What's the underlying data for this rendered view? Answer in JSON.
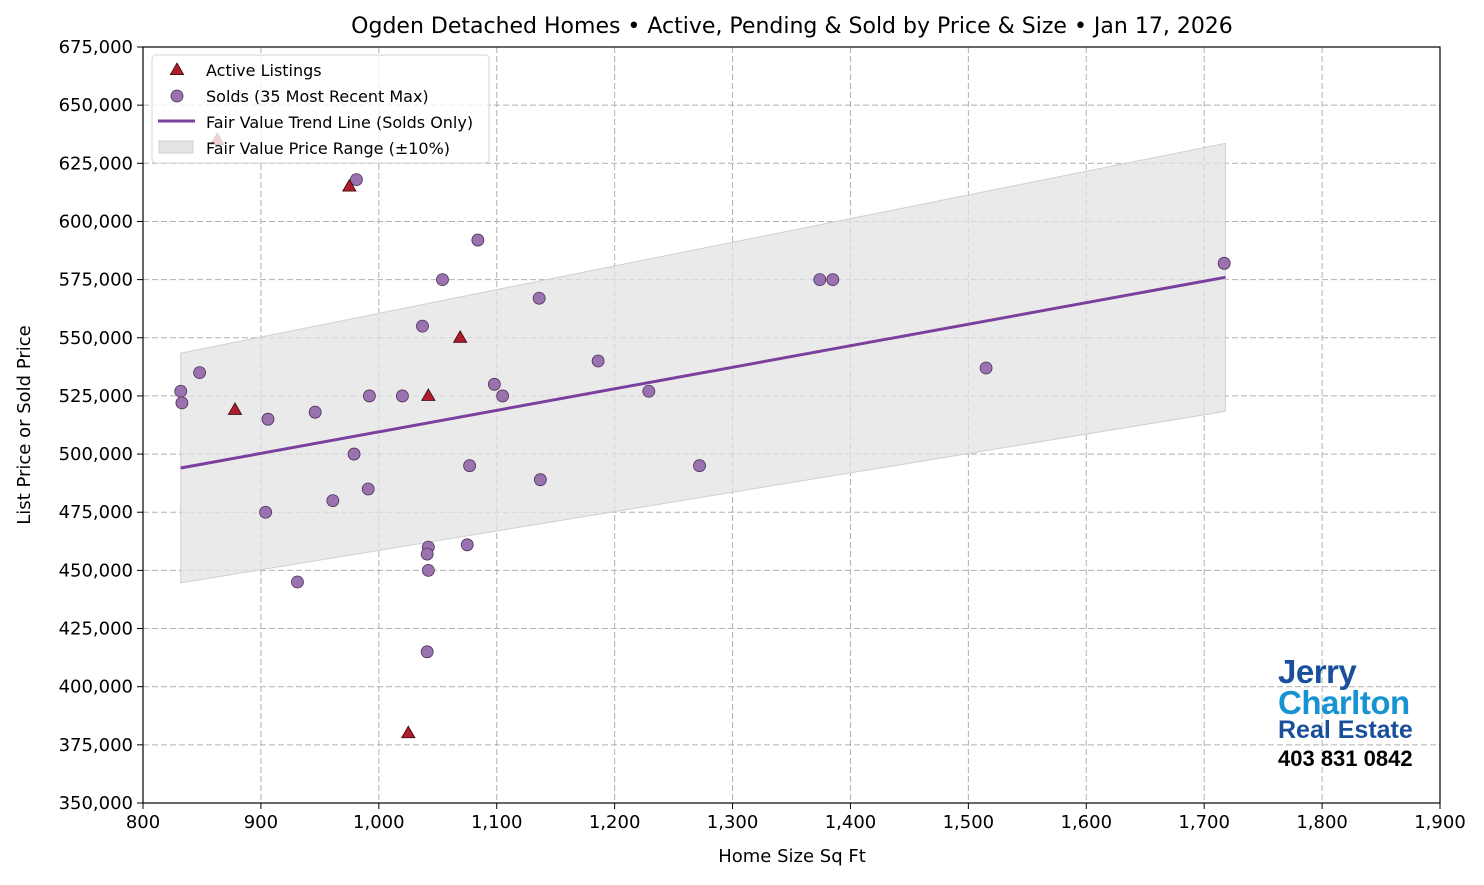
{
  "chart_data": {
    "type": "scatter",
    "title": "Ogden Detached Homes • Active, Pending & Sold by Price & Size • Jan 17, 2026",
    "xlabel": "Home Size Sq Ft",
    "ylabel": "List Price or Sold Price",
    "xlim": [
      800,
      1900
    ],
    "ylim": [
      350000,
      675000
    ],
    "xticks": [
      800,
      900,
      1000,
      1100,
      1200,
      1300,
      1400,
      1500,
      1600,
      1700,
      1800,
      1900
    ],
    "yticks": [
      350000,
      375000,
      400000,
      425000,
      450000,
      475000,
      500000,
      525000,
      550000,
      575000,
      600000,
      625000,
      650000,
      675000
    ],
    "grid": true,
    "legend_placement": "top-left",
    "colors": {
      "active": "#b01c2e",
      "sold": "#9b72b0",
      "trend": "#7b3f9e",
      "band": "#e3e3e3"
    },
    "legend": [
      "Active Listings",
      "Solds (35 Most Recent Max)",
      "Fair Value Trend Line (Solds Only)",
      "Fair Value Price Range (±10%)"
    ],
    "series": [
      {
        "name": "Active Listings",
        "marker": "triangle",
        "points": [
          [
            863,
            635000
          ],
          [
            975,
            615000
          ],
          [
            878,
            519000
          ],
          [
            1042,
            525000
          ],
          [
            1069,
            550000
          ],
          [
            1025,
            380000
          ]
        ]
      },
      {
        "name": "Solds (35 Most Recent Max)",
        "marker": "circle",
        "points": [
          [
            832,
            527000
          ],
          [
            833,
            522000
          ],
          [
            848,
            535000
          ],
          [
            906,
            515000
          ],
          [
            904,
            475000
          ],
          [
            931,
            445000
          ],
          [
            946,
            518000
          ],
          [
            961,
            480000
          ],
          [
            979,
            500000
          ],
          [
            981,
            618000
          ],
          [
            991,
            485000
          ],
          [
            992,
            525000
          ],
          [
            1020,
            525000
          ],
          [
            1037,
            555000
          ],
          [
            1042,
            460000
          ],
          [
            1041,
            457000
          ],
          [
            1042,
            450000
          ],
          [
            1041,
            415000
          ],
          [
            1054,
            575000
          ],
          [
            1075,
            461000
          ],
          [
            1077,
            495000
          ],
          [
            1084,
            592000
          ],
          [
            1098,
            530000
          ],
          [
            1105,
            525000
          ],
          [
            1136,
            567000
          ],
          [
            1137,
            489000
          ],
          [
            1186,
            540000
          ],
          [
            1229,
            527000
          ],
          [
            1272,
            495000
          ],
          [
            1374,
            575000
          ],
          [
            1385,
            575000
          ],
          [
            1515,
            537000
          ],
          [
            1717,
            582000
          ]
        ]
      }
    ],
    "trend_line": {
      "name": "Fair Value Trend Line (Solds Only)",
      "start": [
        832,
        494000
      ],
      "end": [
        1718,
        576000
      ]
    },
    "range_band": {
      "name": "Fair Value Price Range (±10%)",
      "pct": 10
    }
  },
  "logo": {
    "line1": "Jerry",
    "line2": "Charlton",
    "line3": "Real Estate",
    "phone": "403 831 0842"
  }
}
